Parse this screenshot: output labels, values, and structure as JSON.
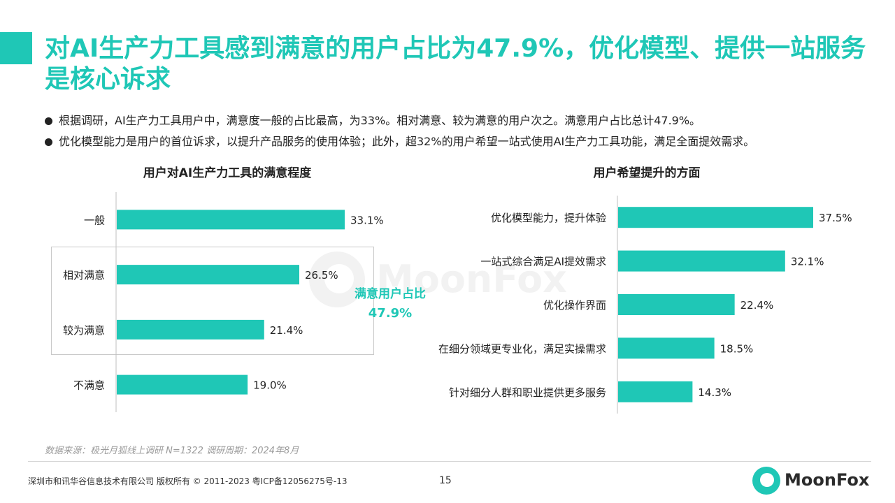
{
  "header": {
    "title": "对AI生产力工具感到满意的用户占比为47.9%，优化模型、提供一站服务是核心诉求"
  },
  "bullets": [
    "根据调研，AI生产力工具用户中，满意度一般的占比最高，为33%。相对满意、较为满意的用户次之。满意用户占比总计47.9%。",
    "优化模型能力是用户的首位诉求，以提升产品服务的使用体验；此外，超32%的用户希望一站式使用AI生产力工具功能，满足全面提效需求。"
  ],
  "colors": {
    "accent": "#1fc7b6",
    "text": "#222222",
    "muted": "#9a9a9a"
  },
  "chart_data": [
    {
      "type": "bar",
      "orientation": "horizontal",
      "title": "用户对AI生产力工具的满意程度",
      "categories": [
        "一般",
        "相对满意",
        "较为满意",
        "不满意"
      ],
      "values": [
        33.1,
        26.5,
        21.4,
        19.0
      ],
      "labels": [
        "33.1%",
        "26.5%",
        "21.4%",
        "19.0%"
      ],
      "xlim": [
        0,
        40
      ],
      "annotation": {
        "label": "满意用户占比",
        "value": "47.9%"
      }
    },
    {
      "type": "bar",
      "orientation": "horizontal",
      "title": "用户希望提升的方面",
      "categories": [
        "优化模型能力，提升体验",
        "一站式综合满足AI提效需求",
        "优化操作界面",
        "在细分领域更专业化，满足实操需求",
        "针对细分人群和职业提供更多服务"
      ],
      "values": [
        37.5,
        32.1,
        22.4,
        18.5,
        14.3
      ],
      "labels": [
        "37.5%",
        "32.1%",
        "22.4%",
        "18.5%",
        "14.3%"
      ],
      "xlim": [
        0,
        40
      ]
    }
  ],
  "watermark": {
    "text": "MoonFox"
  },
  "footer": {
    "source": "数据来源：极光月狐线上调研 N=1322 调研周期：2024年8月",
    "copyright": "深圳市和讯华谷信息技术有限公司 版权所有 © 2011-2023 粤ICP备12056275号-13",
    "page": "15",
    "brand": "MoonFox"
  }
}
